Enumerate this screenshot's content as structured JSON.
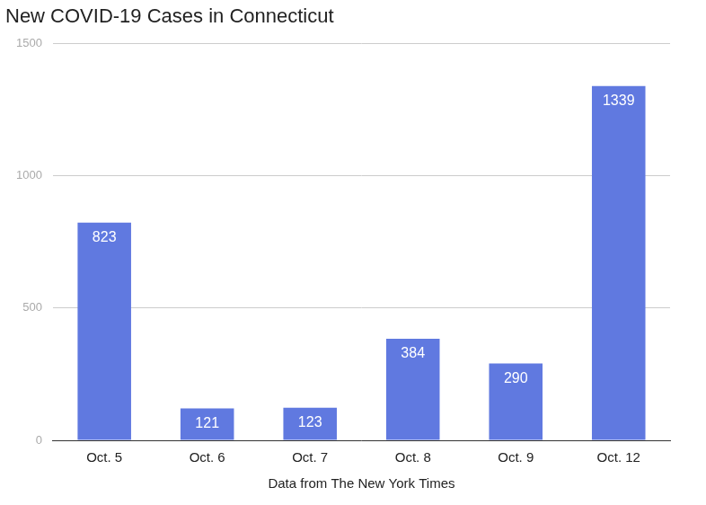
{
  "chart_data": {
    "type": "bar",
    "title": "New COVID-19 Cases in Connecticut",
    "x_label": "Data from The New York Times",
    "categories": [
      "Oct. 5",
      "Oct. 6",
      "Oct. 7",
      "Oct. 8",
      "Oct. 9",
      "Oct. 12"
    ],
    "values": [
      823,
      121,
      123,
      384,
      290,
      1339
    ],
    "color": "#6079e0",
    "ylim": [
      0,
      1500
    ],
    "yticks": [
      0,
      500,
      1000,
      1500
    ],
    "grid": true,
    "data_labels": true
  }
}
